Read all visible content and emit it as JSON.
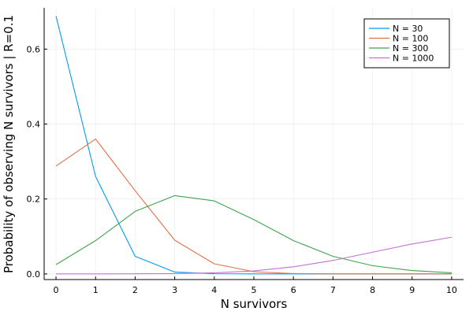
{
  "chart_data": {
    "type": "line",
    "xlabel": "N survivors",
    "ylabel": "Probability of observing N survivors | R=0.1",
    "x": [
      0,
      1,
      2,
      3,
      4,
      5,
      6,
      7,
      8,
      9,
      10
    ],
    "xlim": [
      -0.3,
      10.3
    ],
    "ylim": [
      -0.015,
      0.71
    ],
    "xticks": [
      0,
      1,
      2,
      3,
      4,
      5,
      6,
      7,
      8,
      9,
      10
    ],
    "yticks": [
      0.0,
      0.2,
      0.4,
      0.6
    ],
    "ytick_labels": [
      "0.0",
      "0.2",
      "0.4",
      "0.6"
    ],
    "grid": true,
    "legend_position": "top-right",
    "series": [
      {
        "name": "N = 30",
        "color": "#009AFA",
        "values": [
          0.688,
          0.26,
          0.047,
          0.005,
          0.0005,
          3e-05,
          0.0,
          0.0,
          0.0,
          0.0,
          0.0
        ]
      },
      {
        "name": "N = 100",
        "color": "#E36F47",
        "values": [
          0.288,
          0.36,
          0.222,
          0.09,
          0.027,
          0.006,
          0.001,
          0.0002,
          0.0,
          0.0,
          0.0
        ]
      },
      {
        "name": "N = 300",
        "color": "#3EA44E",
        "values": [
          0.025,
          0.089,
          0.167,
          0.209,
          0.195,
          0.145,
          0.089,
          0.047,
          0.022,
          0.009,
          0.003
        ]
      },
      {
        "name": "N = 1000",
        "color": "#C371D2",
        "values": [
          0.0,
          0.0,
          0.0003,
          0.001,
          0.003,
          0.008,
          0.019,
          0.036,
          0.058,
          0.08,
          0.098
        ]
      }
    ]
  }
}
